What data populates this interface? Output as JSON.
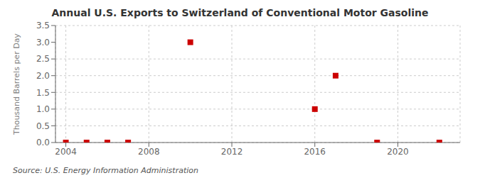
{
  "chart_data": {
    "type": "scatter",
    "title": "Annual U.S. Exports to Switzerland of Conventional Motor Gasoline",
    "ylabel": "Thousand Barrels per Day",
    "annotations": [
      "Source: U.S. Energy Information Administration"
    ],
    "x": [
      2004,
      2005,
      2006,
      2007,
      2010,
      2016,
      2017,
      2019,
      2022
    ],
    "values": [
      0.0,
      0.0,
      0.0,
      0.0,
      3.0,
      1.0,
      2.0,
      0.0,
      0.0
    ],
    "color": "#cc0000",
    "marker": "square",
    "xlim": [
      2003.5,
      2023
    ],
    "ylim": [
      0,
      3.5
    ],
    "xticks": [
      2004,
      2008,
      2012,
      2016,
      2020
    ],
    "yticks": [
      {
        "value": 0,
        "label": "0.0"
      },
      0.5,
      {
        "value": 1,
        "label": "1.0"
      },
      1.5,
      {
        "value": 2,
        "label": "2.0"
      },
      2.5,
      {
        "value": 3,
        "label": "3.0"
      },
      3.5
    ],
    "grid": true
  }
}
